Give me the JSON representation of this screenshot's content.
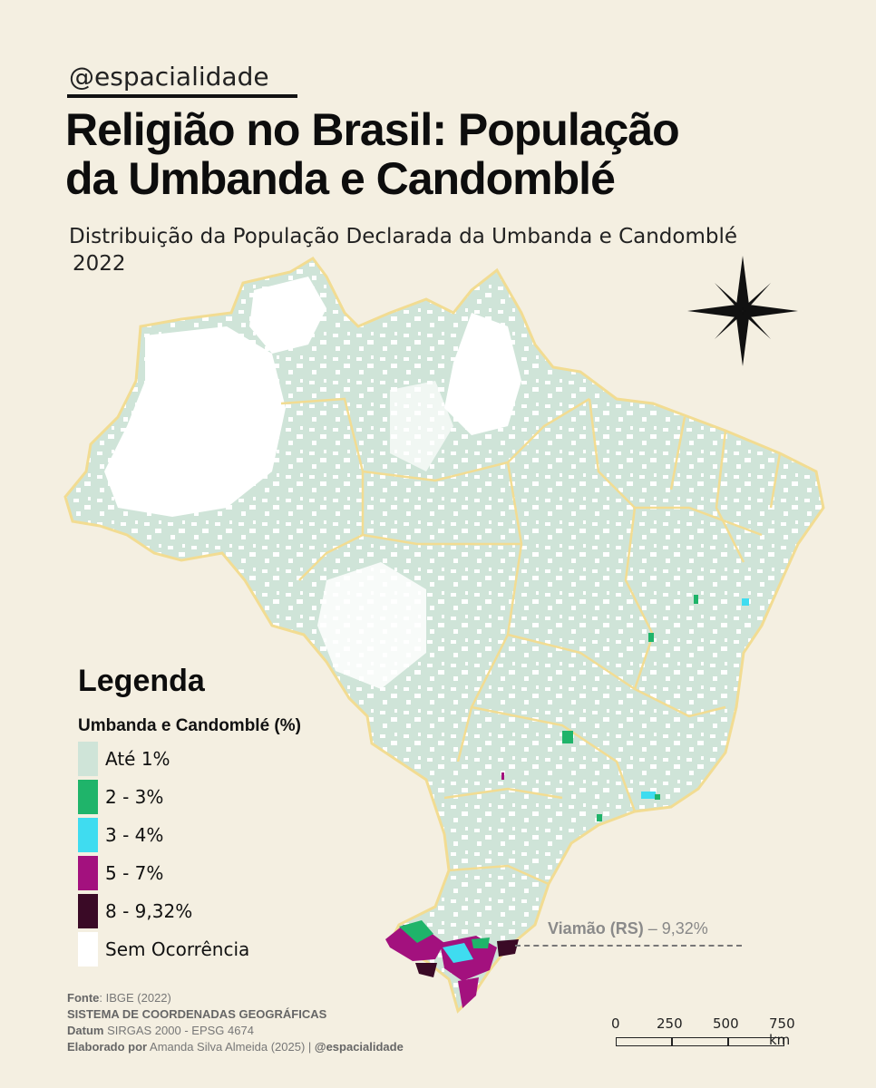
{
  "header": {
    "handle": "@espacialidade",
    "title_line1": "Religião no Brasil: População",
    "title_line2": "da Umbanda e Candomblé",
    "subtitle_line1": "Distribuição da População Declarada da Umbanda e Candomblé",
    "subtitle_line2": "2022"
  },
  "colors": {
    "background": "#f4efe1",
    "class_ate_1": "#cfe4d8",
    "class_2_3": "#1fb46a",
    "class_3_4": "#3fdcf0",
    "class_5_7": "#a3117e",
    "class_8_9": "#3a0a26",
    "class_sem": "#ffffff",
    "state_border": "#f2dc92"
  },
  "legend": {
    "title": "Legenda",
    "subtitle": "Umbanda e Candomblé (%)",
    "items": [
      {
        "label": "Até 1%",
        "color": "#cfe4d8"
      },
      {
        "label": "2 - 3%",
        "color": "#1fb46a"
      },
      {
        "label": "3 - 4%",
        "color": "#3fdcf0"
      },
      {
        "label": "5 - 7%",
        "color": "#a3117e"
      },
      {
        "label": "8 - 9,32%",
        "color": "#3a0a26"
      },
      {
        "label": "Sem Ocorrência",
        "color": "#ffffff"
      }
    ]
  },
  "callout": {
    "place": "Viamão (RS)",
    "value": "– 9,32%"
  },
  "credits": {
    "fonte_label": "Fonte",
    "fonte_value": ": IBGE (2022)",
    "system": "SISTEMA DE COORDENADAS GEOGRÁFICAS",
    "datum_label": "Datum",
    "datum_value": " SIRGAS 2000 - EPSG 4674",
    "author_label": "Elaborado por",
    "author_value": " Amanda Silva Almeida (2025) | ",
    "author_handle": "@espacialidade"
  },
  "scale_bar": {
    "labels": [
      "0",
      "250",
      "500",
      "750 km"
    ]
  },
  "compass": {
    "icon": "compass-rose-icon"
  }
}
